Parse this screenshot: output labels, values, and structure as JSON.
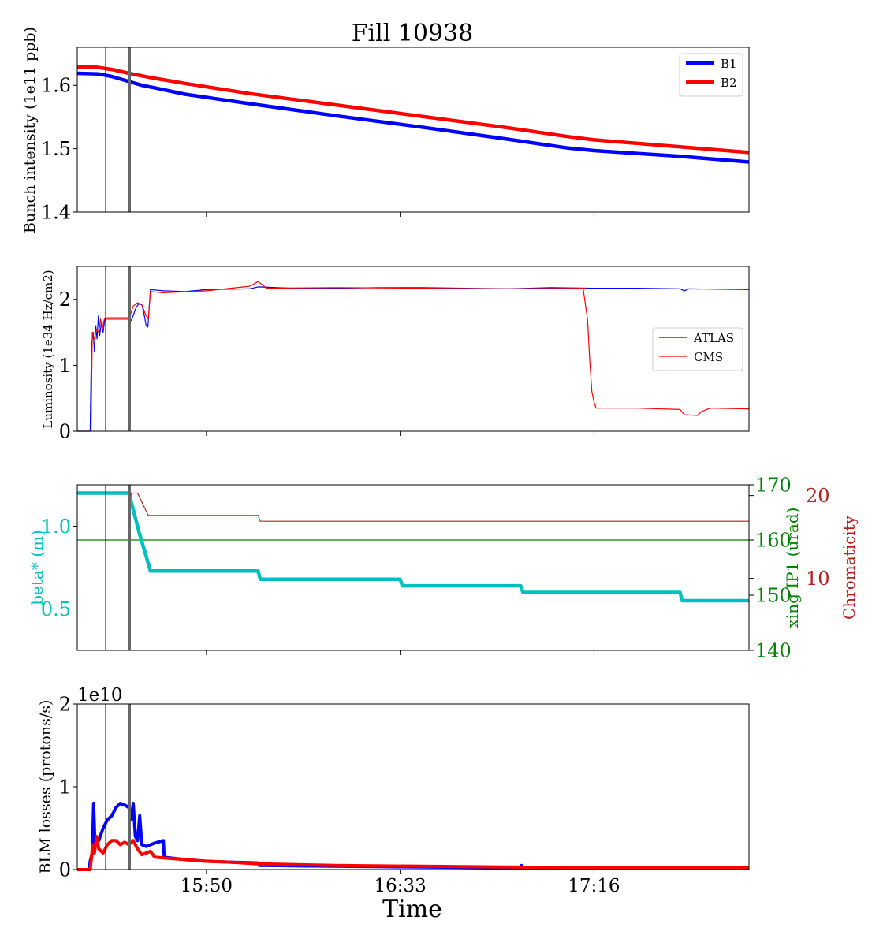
{
  "title": "Fill 10938",
  "xlabel": "Time",
  "xticks": [
    "15:50",
    "16:33",
    "17:16"
  ],
  "colors": {
    "b1": "#0000ff",
    "b2": "#ff0000",
    "beta": "#00bfbf",
    "xing": "#008000",
    "chroma": "#b22222",
    "marker": "#666666"
  },
  "chart_data": [
    {
      "type": "line",
      "ylabel": "Bunch intensity (1e11 ppb)",
      "ylim": [
        1.4,
        1.66
      ],
      "yticks": [
        1.4,
        1.5,
        1.6
      ],
      "legend_position": "top-right",
      "series": [
        {
          "name": "B1",
          "points": [
            [
              0,
              1.619
            ],
            [
              5,
              1.618
            ],
            [
              8,
              1.614
            ],
            [
              12,
              1.606
            ],
            [
              15,
              1.6
            ],
            [
              18,
              1.596
            ],
            [
              25,
              1.586
            ],
            [
              40,
              1.571
            ],
            [
              60,
              1.552
            ],
            [
              80,
              1.534
            ],
            [
              100,
              1.515
            ],
            [
              114,
              1.501
            ],
            [
              120,
              1.497
            ],
            [
              140,
              1.488
            ],
            [
              156,
              1.479
            ]
          ]
        },
        {
          "name": "B2",
          "points": [
            [
              0,
              1.629
            ],
            [
              4,
              1.629
            ],
            [
              8,
              1.625
            ],
            [
              12,
              1.619
            ],
            [
              15,
              1.615
            ],
            [
              18,
              1.611
            ],
            [
              25,
              1.603
            ],
            [
              40,
              1.587
            ],
            [
              60,
              1.569
            ],
            [
              80,
              1.551
            ],
            [
              100,
              1.533
            ],
            [
              114,
              1.519
            ],
            [
              120,
              1.514
            ],
            [
              140,
              1.503
            ],
            [
              156,
              1.494
            ]
          ]
        }
      ]
    },
    {
      "type": "line",
      "ylabel": "Luminosity (1e34 Hz/cm2)",
      "ylim": [
        0,
        2.5
      ],
      "yticks": [
        0,
        1,
        2
      ],
      "legend_position": "center-right",
      "series": [
        {
          "name": "ATLAS",
          "points": [
            [
              0,
              0
            ],
            [
              3,
              0
            ],
            [
              3.3,
              1.3
            ],
            [
              3.7,
              1.5
            ],
            [
              4,
              1.2
            ],
            [
              4.3,
              1.6
            ],
            [
              4.6,
              1.4
            ],
            [
              4.9,
              1.75
            ],
            [
              5.2,
              1.45
            ],
            [
              5.6,
              1.65
            ],
            [
              6,
              1.5
            ],
            [
              6.4,
              1.7
            ],
            [
              6.7,
              1.72
            ],
            [
              12,
              1.72
            ],
            [
              12.6,
              1.68
            ],
            [
              13.5,
              1.85
            ],
            [
              14.2,
              1.93
            ],
            [
              15,
              1.92
            ],
            [
              15.5,
              1.78
            ],
            [
              16,
              1.6
            ],
            [
              16.4,
              1.58
            ],
            [
              17,
              2.15
            ],
            [
              20,
              2.13
            ],
            [
              25,
              2.12
            ],
            [
              30,
              2.15
            ],
            [
              40,
              2.16
            ],
            [
              42,
              2.19
            ],
            [
              50,
              2.17
            ],
            [
              60,
              2.17
            ],
            [
              70,
              2.18
            ],
            [
              80,
              2.18
            ],
            [
              90,
              2.17
            ],
            [
              100,
              2.16
            ],
            [
              110,
              2.18
            ],
            [
              120,
              2.17
            ],
            [
              130,
              2.17
            ],
            [
              140,
              2.16
            ],
            [
              141,
              2.13
            ],
            [
              142,
              2.16
            ],
            [
              156,
              2.15
            ]
          ]
        },
        {
          "name": "CMS",
          "points": [
            [
              0,
              0
            ],
            [
              3.2,
              0
            ],
            [
              3.5,
              1.5
            ],
            [
              4,
              1.4
            ],
            [
              4.5,
              1.55
            ],
            [
              5,
              1.5
            ],
            [
              5.4,
              1.7
            ],
            [
              5.8,
              1.55
            ],
            [
              6.3,
              1.7
            ],
            [
              12,
              1.7
            ],
            [
              13,
              1.9
            ],
            [
              14,
              1.95
            ],
            [
              15,
              1.92
            ],
            [
              16,
              1.75
            ],
            [
              16.5,
              1.7
            ],
            [
              17,
              2.12
            ],
            [
              20,
              2.1
            ],
            [
              30,
              2.13
            ],
            [
              40,
              2.2
            ],
            [
              42,
              2.27
            ],
            [
              44,
              2.17
            ],
            [
              60,
              2.18
            ],
            [
              80,
              2.17
            ],
            [
              100,
              2.16
            ],
            [
              118,
              2.17
            ],
            [
              117.5,
              2.16
            ],
            [
              118.5,
              1.7
            ],
            [
              119,
              1.1
            ],
            [
              119.5,
              0.6
            ],
            [
              120,
              0.45
            ],
            [
              120.5,
              0.35
            ],
            [
              130,
              0.35
            ],
            [
              140,
              0.33
            ],
            [
              141,
              0.25
            ],
            [
              144,
              0.24
            ],
            [
              145,
              0.3
            ],
            [
              147,
              0.35
            ],
            [
              156,
              0.34
            ]
          ]
        }
      ]
    },
    {
      "type": "line",
      "ylabel": "beta* (m)",
      "ylim": [
        0.25,
        1.25
      ],
      "yticks": [
        0.5,
        1.0
      ],
      "y2label": "xing IP1 (urad)",
      "y2lim": [
        140,
        170
      ],
      "y2ticks": [
        140,
        150,
        160,
        170
      ],
      "y3label": "Chromaticity",
      "y3lim": [
        1.3,
        21.3
      ],
      "y3ticks": [
        10,
        20
      ],
      "series": [
        {
          "name": "beta*",
          "axis": "y",
          "points": [
            [
              0,
              1.2
            ],
            [
              12,
              1.2
            ],
            [
              13,
              1.1
            ],
            [
              14.5,
              0.95
            ],
            [
              16,
              0.82
            ],
            [
              17,
              0.73
            ],
            [
              42,
              0.73
            ],
            [
              42.5,
              0.68
            ],
            [
              75,
              0.68
            ],
            [
              75.5,
              0.64
            ],
            [
              103,
              0.64
            ],
            [
              103.5,
              0.6
            ],
            [
              140,
              0.6
            ],
            [
              140.5,
              0.55
            ],
            [
              156,
              0.55
            ]
          ]
        },
        {
          "name": "xing IP1",
          "axis": "y2",
          "points": [
            [
              0,
              160
            ],
            [
              156,
              160
            ]
          ]
        },
        {
          "name": "Chromaticity",
          "axis": "y3",
          "points": [
            [
              0,
              20.3
            ],
            [
              12.5,
              20.3
            ],
            [
              12.5,
              18.5
            ],
            [
              12.6,
              20.3
            ],
            [
              14,
              20.3
            ],
            [
              16.5,
              17.6
            ],
            [
              42,
              17.6
            ],
            [
              42.5,
              16.9
            ],
            [
              156,
              16.9
            ]
          ]
        }
      ]
    },
    {
      "type": "line",
      "ylabel": "BLM losses (protons/s)",
      "offset_label": "1e10",
      "ylim": [
        0,
        2
      ],
      "yticks": [
        0,
        1,
        2
      ],
      "series": [
        {
          "name": "B1",
          "points": [
            [
              0,
              0
            ],
            [
              2.8,
              0
            ],
            [
              3,
              0.1
            ],
            [
              3.5,
              0.2
            ],
            [
              3.8,
              0.8
            ],
            [
              4.1,
              0.3
            ],
            [
              5,
              0.35
            ],
            [
              6,
              0.5
            ],
            [
              7,
              0.6
            ],
            [
              8,
              0.65
            ],
            [
              9,
              0.75
            ],
            [
              10,
              0.8
            ],
            [
              11,
              0.78
            ],
            [
              12,
              0.75
            ],
            [
              12.5,
              0.6
            ],
            [
              13,
              0.8
            ],
            [
              13.5,
              0.4
            ],
            [
              14,
              0.35
            ],
            [
              14.5,
              0.65
            ],
            [
              15,
              0.3
            ],
            [
              16,
              0.28
            ],
            [
              18,
              0.32
            ],
            [
              20,
              0.35
            ],
            [
              20.2,
              0.15
            ],
            [
              25,
              0.12
            ],
            [
              30,
              0.1
            ],
            [
              35,
              0.09
            ],
            [
              42,
              0.08
            ],
            [
              42.3,
              0.05
            ],
            [
              60,
              0.04
            ],
            [
              80,
              0.03
            ],
            [
              103,
              0.02
            ],
            [
              103.2,
              0.05
            ],
            [
              103.5,
              0.02
            ],
            [
              120,
              0.02
            ],
            [
              156,
              0.01
            ]
          ]
        },
        {
          "name": "B2",
          "points": [
            [
              0,
              0
            ],
            [
              3,
              0
            ],
            [
              3.2,
              0.1
            ],
            [
              3.6,
              0.3
            ],
            [
              4,
              0.2
            ],
            [
              4.5,
              0.4
            ],
            [
              5,
              0.25
            ],
            [
              6,
              0.2
            ],
            [
              7,
              0.3
            ],
            [
              8,
              0.35
            ],
            [
              9,
              0.35
            ],
            [
              10,
              0.3
            ],
            [
              11,
              0.33
            ],
            [
              12,
              0.3
            ],
            [
              13,
              0.35
            ],
            [
              14,
              0.25
            ],
            [
              15,
              0.18
            ],
            [
              16,
              0.2
            ],
            [
              17,
              0.22
            ],
            [
              18,
              0.15
            ],
            [
              20,
              0.14
            ],
            [
              25,
              0.12
            ],
            [
              30,
              0.1
            ],
            [
              35,
              0.09
            ],
            [
              42,
              0.07
            ],
            [
              60,
              0.05
            ],
            [
              80,
              0.04
            ],
            [
              100,
              0.03
            ],
            [
              120,
              0.02
            ],
            [
              156,
              0.02
            ]
          ]
        }
      ]
    }
  ]
}
